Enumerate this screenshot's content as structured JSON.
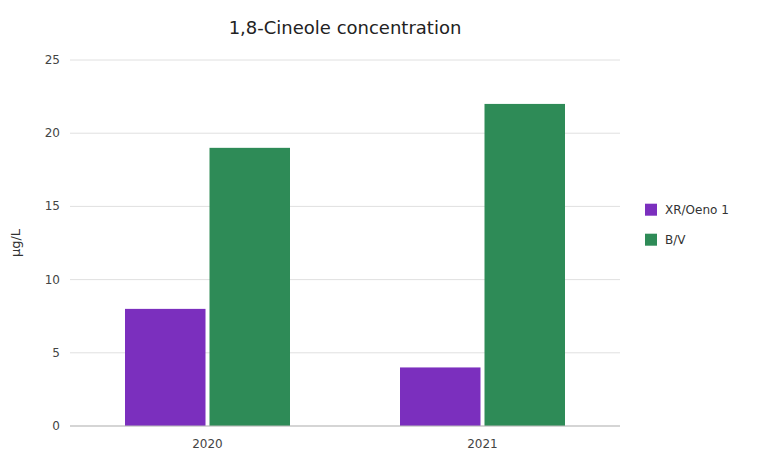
{
  "chart_data": {
    "type": "bar",
    "title": "1,8-Cineole concentration",
    "ylabel": "μg/L",
    "categories": [
      "2020",
      "2021"
    ],
    "series": [
      {
        "name": "XR/Oeno 1",
        "color": "#7B2FBE",
        "values": [
          8,
          4
        ]
      },
      {
        "name": "B/V",
        "color": "#2E8B57",
        "values": [
          19,
          22
        ]
      }
    ],
    "ylim": [
      0,
      25
    ],
    "yticks": [
      0,
      5,
      10,
      15,
      20,
      25
    ],
    "grid": true,
    "legend": "right"
  }
}
